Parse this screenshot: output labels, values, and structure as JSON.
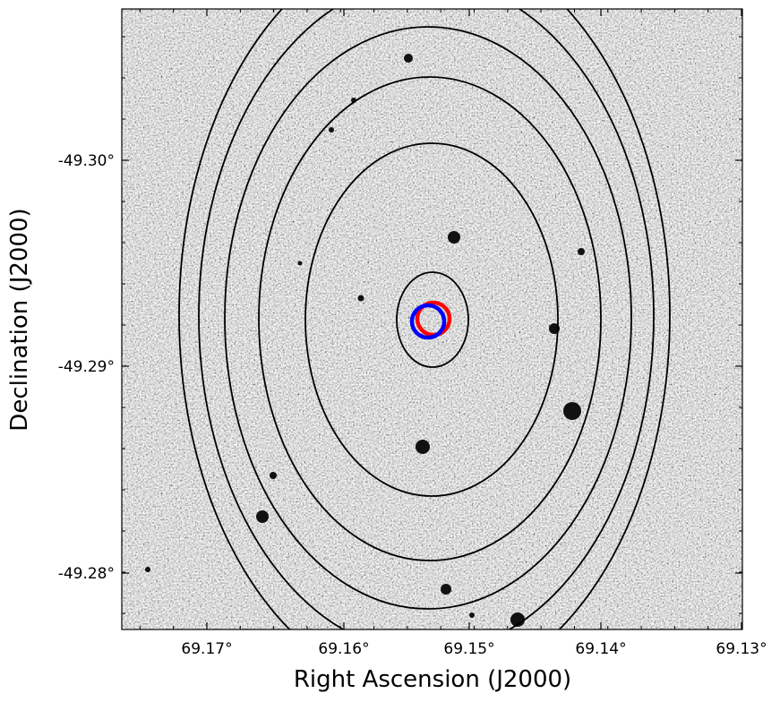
{
  "figure": {
    "xlabel": "Right Ascension (J2000)",
    "ylabel": "Declination (J2000)",
    "x_ticks": [
      "69.17°",
      "69.16°",
      "69.15°",
      "69.14°",
      "69.13°"
    ],
    "y_ticks": [
      "-49.30°",
      "-49.29°",
      "-49.28°"
    ],
    "background": "grayscale noisy sky image",
    "contour_color": "#000000",
    "markers": [
      {
        "name": "red-circle",
        "color": "#ff0000"
      },
      {
        "name": "blue-circle",
        "color": "#0000ff"
      }
    ]
  }
}
